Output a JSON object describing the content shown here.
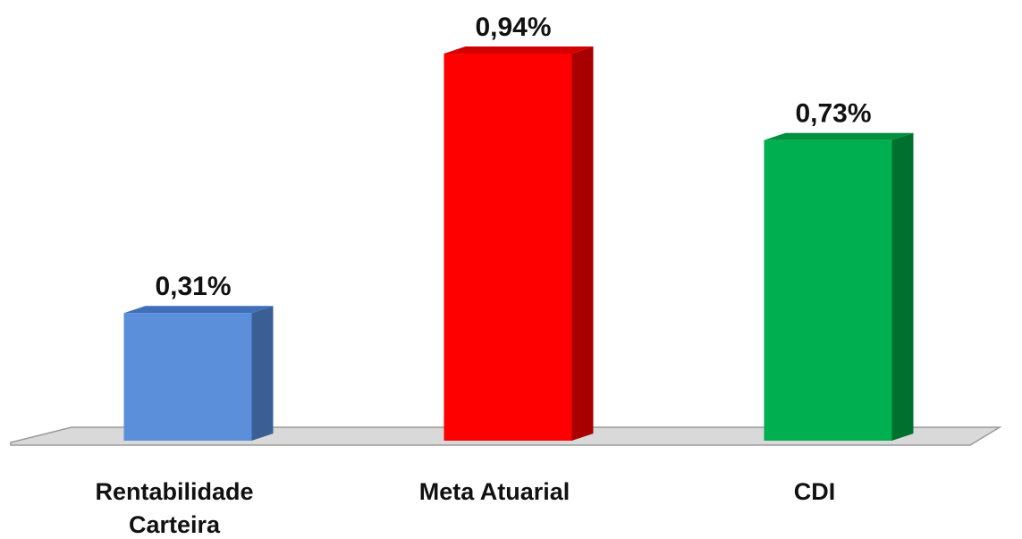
{
  "chart_data": {
    "type": "bar",
    "style": "3d",
    "categories": [
      [
        "Rentabilidade",
        "Carteira"
      ],
      [
        "Meta Atuarial"
      ],
      [
        "CDI"
      ]
    ],
    "values": [
      0.31,
      0.94,
      0.73
    ],
    "value_labels": [
      "0,31%",
      "0,94%",
      "0,73%"
    ],
    "unit": "%",
    "colors": [
      "#5b8fd9",
      "#ff0000",
      "#00b050"
    ],
    "side_colors": [
      "#3b5f94",
      "#a80000",
      "#00702e"
    ],
    "top_colors": [
      "#3e6fb8",
      "#d40000",
      "#00903e"
    ],
    "floor_color": "#d9d9d9",
    "title": "",
    "xlabel": "",
    "ylabel": "",
    "grid": false,
    "legend": "none"
  }
}
